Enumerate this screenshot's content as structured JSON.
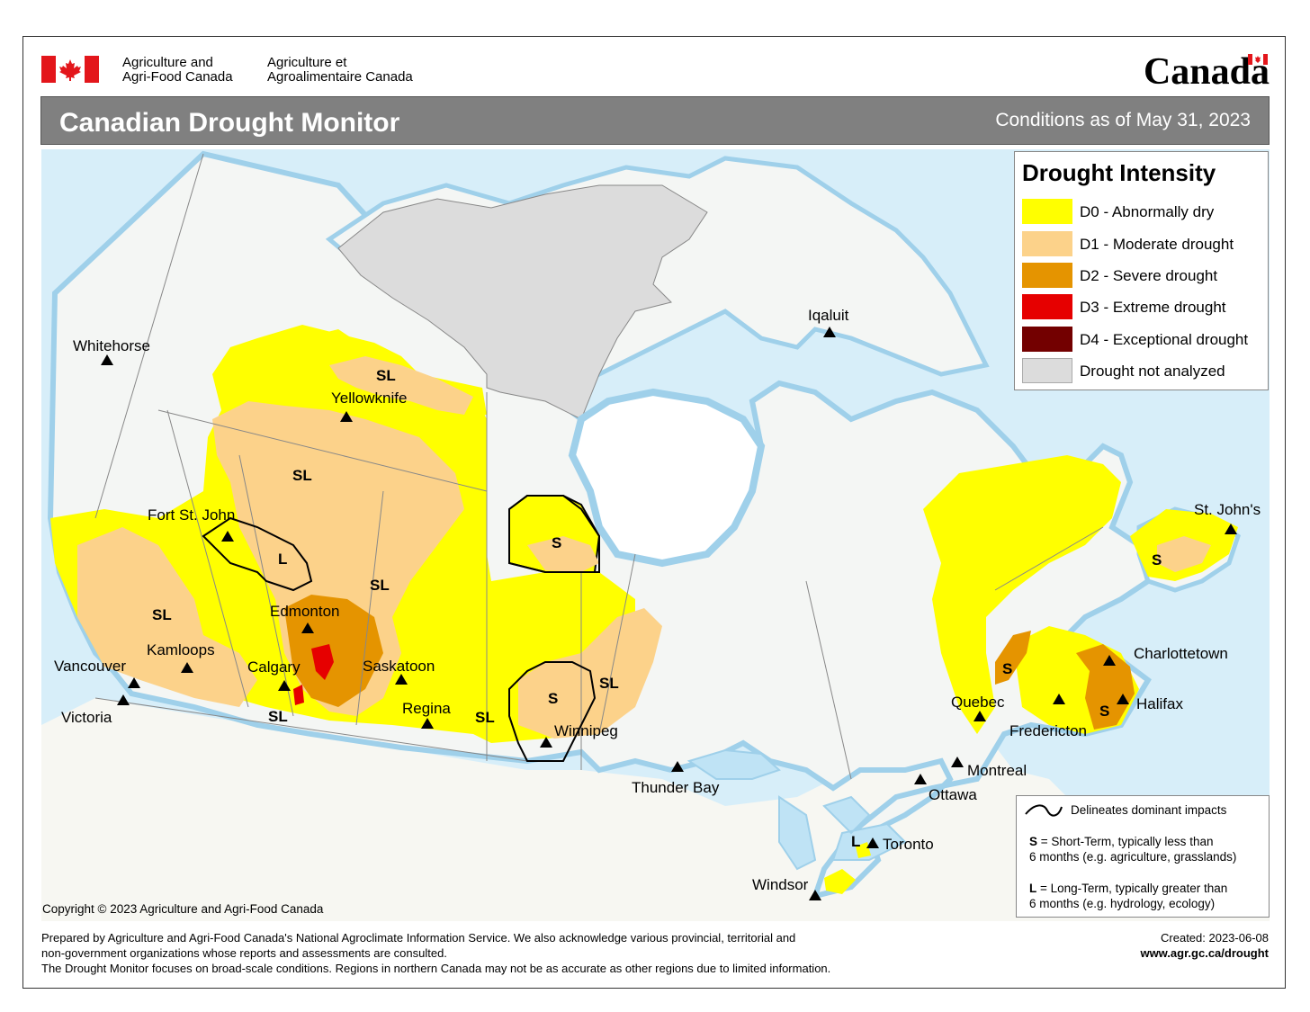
{
  "header": {
    "agency_en_line1": "Agriculture and",
    "agency_en_line2": "Agri-Food Canada",
    "agency_fr_line1": "Agriculture et",
    "agency_fr_line2": "Agroalimentaire Canada",
    "wordmark": "Canada",
    "flag_colors": {
      "red": "#e3161b",
      "white": "#ffffff"
    }
  },
  "titlebar": {
    "title": "Canadian Drought Monitor",
    "date": "Conditions as of May 31, 2023"
  },
  "legend": {
    "heading": "Drought Intensity",
    "items": [
      {
        "label": "D0 - Abnormally dry",
        "color": "#ffff00"
      },
      {
        "label": "D1 - Moderate drought",
        "color": "#fcd28a"
      },
      {
        "label": "D2 - Severe drought",
        "color": "#e59400"
      },
      {
        "label": "D3 - Extreme drought",
        "color": "#e60000"
      },
      {
        "label": "D4 - Exceptional drought",
        "color": "#730000"
      },
      {
        "label": "Drought not analyzed",
        "color": "#dcdcdc"
      }
    ]
  },
  "impacts": {
    "line_label": "Delineates dominant impacts",
    "s_key": "S",
    "s_text": " = Short-Term, typically less than",
    "s_text2": "6 months (e.g. agriculture, grasslands)",
    "l_key": "L",
    "l_text": " = Long-Term, typically greater  than",
    "l_text2": "6 months (e.g. hydrology, ecology)"
  },
  "map": {
    "colors": {
      "water": "#bfe3f5",
      "land": "#f4f6f4",
      "us_land": "#f7f7f2",
      "not_analyzed": "#dcdcdc",
      "border": "#888888"
    },
    "cities": [
      {
        "name": "Whitehorse"
      },
      {
        "name": "Yellowknife"
      },
      {
        "name": "Iqaluit"
      },
      {
        "name": "Fort St. John"
      },
      {
        "name": "Edmonton"
      },
      {
        "name": "Kamloops"
      },
      {
        "name": "Vancouver"
      },
      {
        "name": "Victoria"
      },
      {
        "name": "Calgary"
      },
      {
        "name": "Saskatoon"
      },
      {
        "name": "Regina"
      },
      {
        "name": "Winnipeg"
      },
      {
        "name": "Thunder Bay"
      },
      {
        "name": "Ottawa"
      },
      {
        "name": "Montreal"
      },
      {
        "name": "Quebec"
      },
      {
        "name": "Fredericton"
      },
      {
        "name": "Charlottetown"
      },
      {
        "name": "Halifax"
      },
      {
        "name": "St. John's"
      },
      {
        "name": "Toronto"
      },
      {
        "name": "Windsor"
      }
    ],
    "region_labels": {
      "s": "S",
      "l": "L",
      "sl": "SL"
    }
  },
  "copyright": "Copyright © 2023 Agriculture and Agri-Food Canada",
  "footer": {
    "line1": "Prepared by Agriculture and Agri-Food Canada's National Agroclimate Information Service.  We also acknowledge various provincial, territorial and",
    "line2": "non-government organizations whose reports and assessments are consulted.",
    "line3": "The Drought Monitor focuses on broad-scale conditions.  Regions in northern Canada may not be as accurate as other regions due to limited information.",
    "created": "Created: 2023-06-08",
    "url": "www.agr.gc.ca/drought"
  }
}
